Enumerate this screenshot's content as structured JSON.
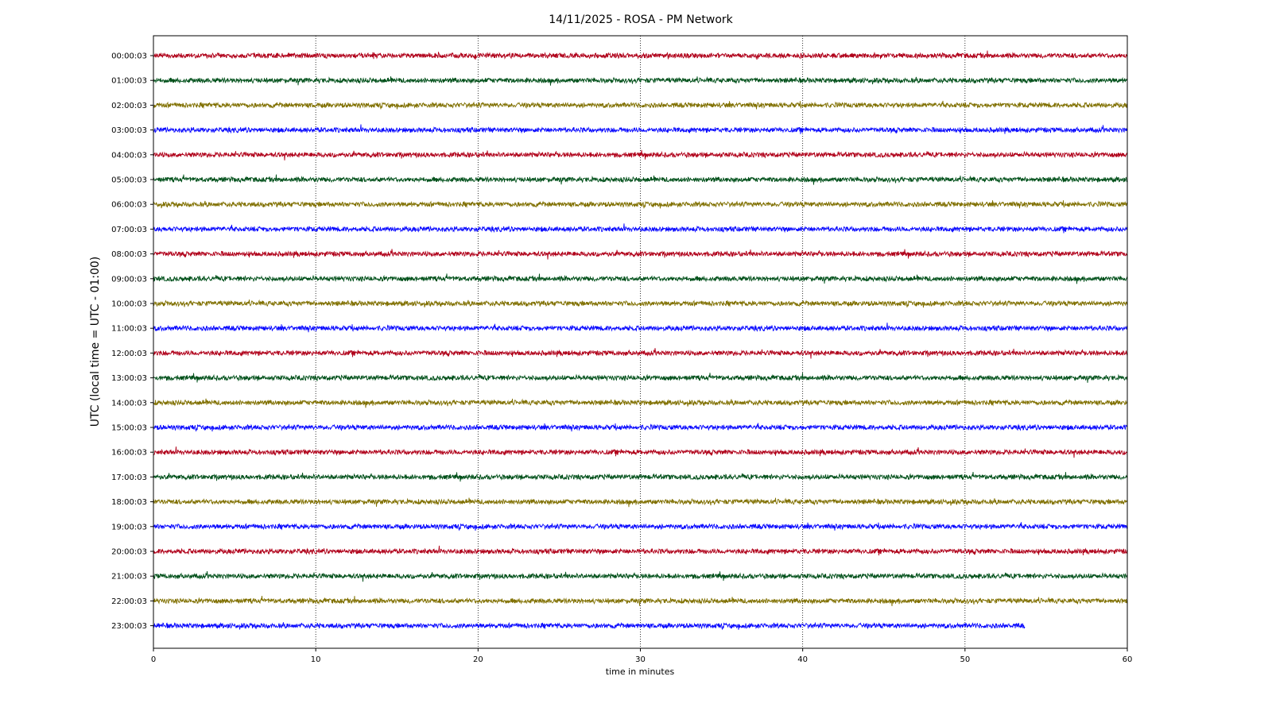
{
  "chart_data": {
    "type": "line",
    "title": "14/11/2025 - ROSA - PM Network",
    "xlabel": "time in minutes",
    "ylabel": "UTC (local time = UTC - 01:00)",
    "xlim": [
      0,
      60
    ],
    "x_ticks": [
      0,
      10,
      20,
      30,
      40,
      50,
      60
    ],
    "grid": "vertical dotted lines at x ticks",
    "color_cycle": [
      "#b0001a",
      "#00501a",
      "#807000",
      "#0a0aff"
    ],
    "series": [
      {
        "name": "00:00:03",
        "x_start": 0,
        "x_end": 60,
        "color": "#b0001a"
      },
      {
        "name": "01:00:03",
        "x_start": 0,
        "x_end": 60,
        "color": "#00501a"
      },
      {
        "name": "02:00:03",
        "x_start": 0,
        "x_end": 60,
        "color": "#807000"
      },
      {
        "name": "03:00:03",
        "x_start": 0,
        "x_end": 60,
        "color": "#0a0aff"
      },
      {
        "name": "04:00:03",
        "x_start": 0,
        "x_end": 60,
        "color": "#b0001a"
      },
      {
        "name": "05:00:03",
        "x_start": 0,
        "x_end": 60,
        "color": "#00501a"
      },
      {
        "name": "06:00:03",
        "x_start": 0,
        "x_end": 60,
        "color": "#807000"
      },
      {
        "name": "07:00:03",
        "x_start": 0,
        "x_end": 60,
        "color": "#0a0aff"
      },
      {
        "name": "08:00:03",
        "x_start": 0,
        "x_end": 60,
        "color": "#b0001a"
      },
      {
        "name": "09:00:03",
        "x_start": 0,
        "x_end": 60,
        "color": "#00501a"
      },
      {
        "name": "10:00:03",
        "x_start": 0,
        "x_end": 60,
        "color": "#807000"
      },
      {
        "name": "11:00:03",
        "x_start": 0,
        "x_end": 60,
        "color": "#0a0aff"
      },
      {
        "name": "12:00:03",
        "x_start": 0,
        "x_end": 60,
        "color": "#b0001a"
      },
      {
        "name": "13:00:03",
        "x_start": 0,
        "x_end": 60,
        "color": "#00501a"
      },
      {
        "name": "14:00:03",
        "x_start": 0,
        "x_end": 60,
        "color": "#807000"
      },
      {
        "name": "15:00:03",
        "x_start": 0,
        "x_end": 60,
        "color": "#0a0aff"
      },
      {
        "name": "16:00:03",
        "x_start": 0,
        "x_end": 60,
        "color": "#b0001a"
      },
      {
        "name": "17:00:03",
        "x_start": 0,
        "x_end": 60,
        "color": "#00501a"
      },
      {
        "name": "18:00:03",
        "x_start": 0,
        "x_end": 60,
        "color": "#807000"
      },
      {
        "name": "19:00:03",
        "x_start": 0,
        "x_end": 60,
        "color": "#0a0aff"
      },
      {
        "name": "20:00:03",
        "x_start": 0,
        "x_end": 60,
        "color": "#b0001a"
      },
      {
        "name": "21:00:03",
        "x_start": 0,
        "x_end": 60,
        "color": "#00501a"
      },
      {
        "name": "22:00:03",
        "x_start": 0,
        "x_end": 60,
        "color": "#807000"
      },
      {
        "name": "23:00:03",
        "x_start": 0,
        "x_end": 53.7,
        "color": "#0a0aff"
      }
    ]
  }
}
